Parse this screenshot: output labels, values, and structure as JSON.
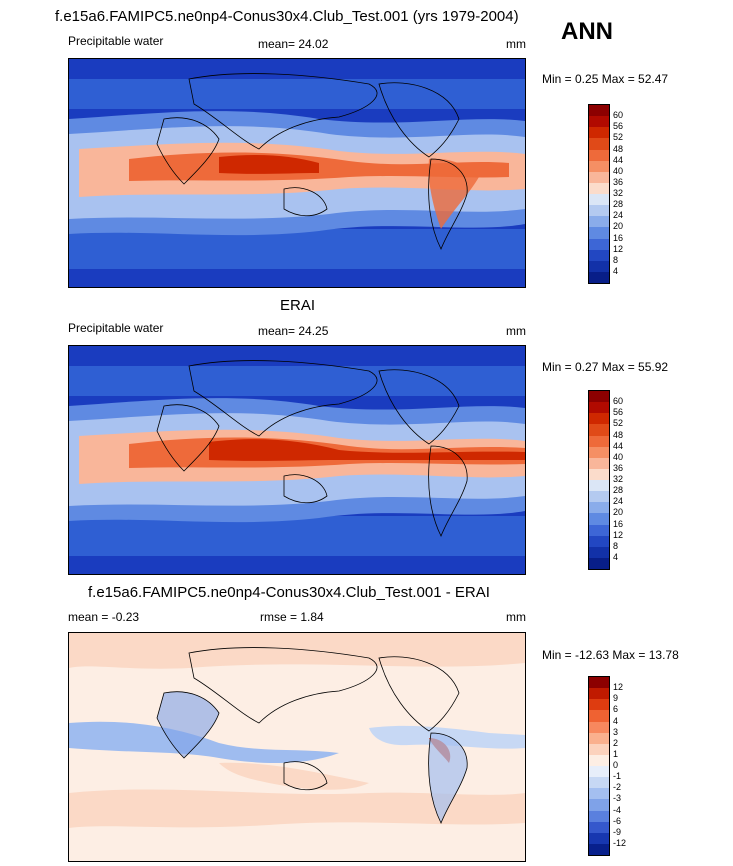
{
  "season": "ANN",
  "units": "mm",
  "panels": [
    {
      "title": "f.e15a6.FAMIPC5.ne0np4-Conus30x4.Club_Test.001 (yrs 1979-2004)",
      "field": "Precipitable water",
      "stat1": "mean=  24.02",
      "stat2": "",
      "units": "mm",
      "minmax": "Min =   0.25 Max =  52.47",
      "levels": [
        "60",
        "56",
        "52",
        "48",
        "44",
        "40",
        "36",
        "32",
        "28",
        "24",
        "20",
        "16",
        "12",
        "8",
        "4"
      ],
      "colors": [
        "#8c0000",
        "#b10a00",
        "#cf2800",
        "#e04a18",
        "#ee6a3a",
        "#f58f64",
        "#f9b69a",
        "#fbdccb",
        "#dbe6f6",
        "#b4caf0",
        "#8aacea",
        "#5f8ae2",
        "#3d66d6",
        "#2247c2",
        "#1231a8",
        "#081e88"
      ]
    },
    {
      "title": "ERAI",
      "field": "Precipitable water",
      "stat1": "mean=  24.25",
      "stat2": "",
      "units": "mm",
      "minmax": "Min =   0.27 Max =  55.92",
      "levels": [
        "60",
        "56",
        "52",
        "48",
        "44",
        "40",
        "36",
        "32",
        "28",
        "24",
        "20",
        "16",
        "12",
        "8",
        "4"
      ],
      "colors": [
        "#8c0000",
        "#b10a00",
        "#cf2800",
        "#e04a18",
        "#ee6a3a",
        "#f58f64",
        "#f9b69a",
        "#fbdccb",
        "#dbe6f6",
        "#b4caf0",
        "#8aacea",
        "#5f8ae2",
        "#3d66d6",
        "#2247c2",
        "#1231a8",
        "#081e88"
      ]
    },
    {
      "title": "f.e15a6.FAMIPC5.ne0np4-Conus30x4.Club_Test.001 - ERAI",
      "field": "mean =  -0.23",
      "stat1": "rmse =   1.84",
      "stat2": "",
      "units": "mm",
      "minmax": "Min = -12.63 Max =  13.78",
      "levels": [
        "12",
        "9",
        "6",
        "4",
        "3",
        "2",
        "1",
        "0",
        "-1",
        "-2",
        "-3",
        "-4",
        "-6",
        "-9",
        "-12"
      ],
      "colors": [
        "#8c0000",
        "#c01a00",
        "#de3c10",
        "#ef6232",
        "#f7885e",
        "#fab08e",
        "#fcd2bd",
        "#fdeee4",
        "#e7eefa",
        "#c7d8f4",
        "#a4bff0",
        "#7fa2e8",
        "#5a80de",
        "#3558cc",
        "#1737b0",
        "#08208c"
      ]
    }
  ],
  "map_palette": {
    "ocean_low": "#1a3cbf",
    "ocean_mid": "#4f7fe0",
    "ocean_light": "#a9c2f0",
    "tropic": "#ee6a3a",
    "tropic_hot": "#cf2800",
    "land_line": "#000000",
    "diff_pos": "#fbd9c6",
    "diff_neg": "#9fbcef",
    "diff_zero": "#fdf1ea"
  }
}
